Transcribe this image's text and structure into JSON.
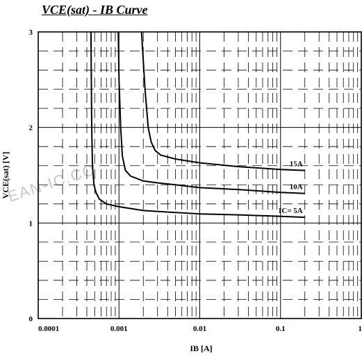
{
  "chart_data": {
    "type": "line",
    "title": "VCE(sat) - IB Curve",
    "xlabel": "IB [A]",
    "ylabel": "VCE(sat) [V]",
    "xscale": "log",
    "xlim": [
      0.0001,
      1
    ],
    "ylim": [
      0,
      3
    ],
    "x_ticks": [
      "0.0001",
      "0.001",
      "0.01",
      "0.1",
      "1"
    ],
    "y_ticks": [
      "0",
      "1",
      "2",
      "3"
    ],
    "grid": true,
    "series": [
      {
        "name": "IC= 5A",
        "points": [
          [
            0.00045,
            3.0
          ],
          [
            0.00046,
            2.0
          ],
          [
            0.00047,
            1.6
          ],
          [
            0.00049,
            1.4
          ],
          [
            0.00052,
            1.32
          ],
          [
            0.00057,
            1.25
          ],
          [
            0.0007,
            1.2
          ],
          [
            0.001,
            1.17
          ],
          [
            0.002,
            1.13
          ],
          [
            0.005,
            1.11
          ],
          [
            0.01,
            1.095
          ],
          [
            0.03,
            1.085
          ],
          [
            0.1,
            1.07
          ],
          [
            0.2,
            1.06
          ]
        ]
      },
      {
        "name": "10A",
        "points": [
          [
            0.00098,
            3.0
          ],
          [
            0.001,
            2.5
          ],
          [
            0.00105,
            2.0
          ],
          [
            0.0011,
            1.7
          ],
          [
            0.0012,
            1.55
          ],
          [
            0.0014,
            1.49
          ],
          [
            0.002,
            1.44
          ],
          [
            0.003,
            1.42
          ],
          [
            0.005,
            1.4
          ],
          [
            0.01,
            1.37
          ],
          [
            0.03,
            1.35
          ],
          [
            0.1,
            1.32
          ],
          [
            0.2,
            1.31
          ]
        ]
      },
      {
        "name": "15A",
        "points": [
          [
            0.0019,
            3.0
          ],
          [
            0.0021,
            2.4
          ],
          [
            0.0023,
            2.0
          ],
          [
            0.0025,
            1.85
          ],
          [
            0.0028,
            1.76
          ],
          [
            0.0033,
            1.71
          ],
          [
            0.005,
            1.67
          ],
          [
            0.01,
            1.63
          ],
          [
            0.03,
            1.59
          ],
          [
            0.1,
            1.56
          ],
          [
            0.2,
            1.55
          ]
        ]
      }
    ]
  },
  "watermark": "EAN-IC.CO"
}
